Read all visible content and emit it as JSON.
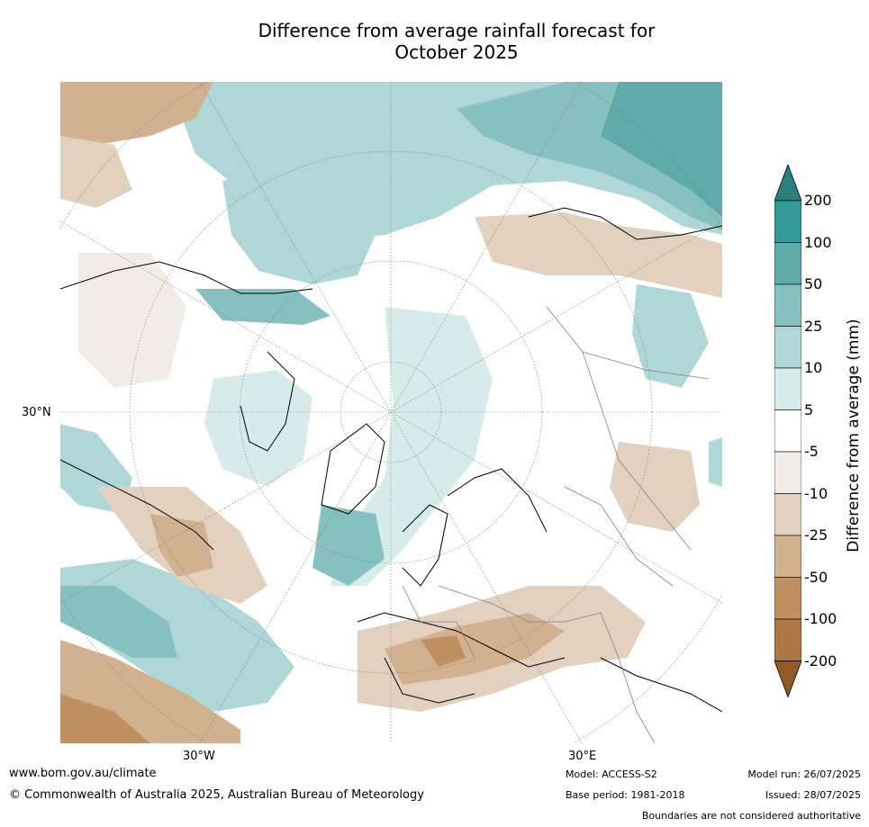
{
  "title_line1": "Difference from average rainfall forecast for",
  "title_line2": "October 2025",
  "axis_labels": {
    "lat_30n": "30°N",
    "lon_30w": "30°W",
    "lon_30e": "30°E"
  },
  "colorbar": {
    "label": "Difference from average (mm)",
    "ticks": [
      "200",
      "100",
      "50",
      "25",
      "10",
      "5",
      "-5",
      "-10",
      "-25",
      "-50",
      "-100",
      "-200"
    ],
    "colors": [
      "#2b7f7e",
      "#349a98",
      "#5eaaa9",
      "#86c1c0",
      "#afd7d7",
      "#d6ebea",
      "#ffffff",
      "#f2ece6",
      "#e3d1c0",
      "#d1b190",
      "#c09060",
      "#ad7642",
      "#925a25"
    ]
  },
  "footer": {
    "website": "www.bom.gov.au/climate",
    "copyright": "© Commonwealth of Australia 2025, Australian Bureau of Meteorology",
    "model": "Model: ACCESS-S2",
    "base_period": "Base period: 1981-2018",
    "model_run": "Model run: 26/07/2025",
    "issued": "Issued: 28/07/2025",
    "boundaries_note": "Boundaries are not considered authoritative"
  }
}
